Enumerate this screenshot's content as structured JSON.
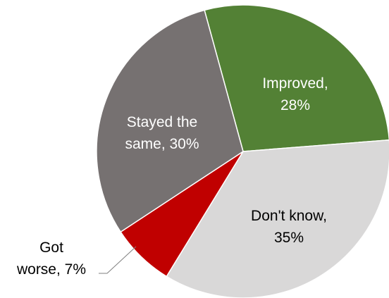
{
  "chart_data": {
    "type": "pie",
    "slices": [
      {
        "label_lines": [
          "Improved,",
          "28%"
        ],
        "category": "Improved",
        "value": 28,
        "color": "#538135",
        "text_color": "#ffffff"
      },
      {
        "label_lines": [
          "Don't know,",
          "35%"
        ],
        "category": "Don't know",
        "value": 35,
        "color": "#d9d8d8",
        "text_color": "#000000"
      },
      {
        "label_lines": [
          "Got",
          "worse, 7%"
        ],
        "category": "Got worse",
        "value": 7,
        "color": "#c00000",
        "text_color": "#000000"
      },
      {
        "label_lines": [
          "Stayed the",
          "same, 30%"
        ],
        "category": "Stayed the same",
        "value": 30,
        "color": "#767171",
        "text_color": "#ffffff"
      }
    ]
  }
}
